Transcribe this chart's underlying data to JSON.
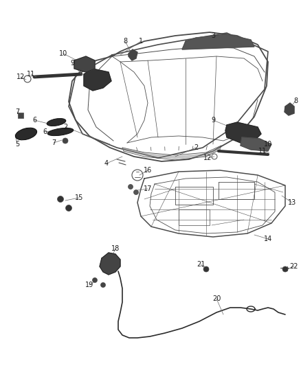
{
  "background": "#ffffff",
  "line_color": "#4a4a4a",
  "label_color": "#1a1a1a",
  "figsize": [
    4.38,
    5.33
  ],
  "dpi": 100
}
